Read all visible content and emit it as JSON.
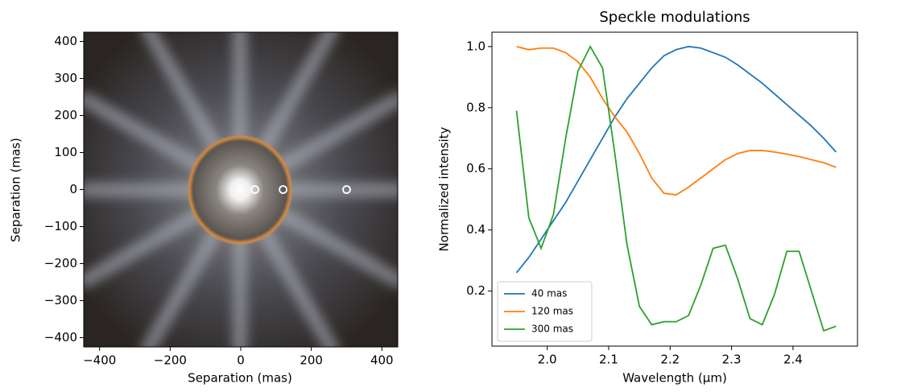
{
  "chart_data": [
    {
      "type": "scatter",
      "xlabel": "Separation (mas)",
      "ylabel": "Separation (mas)",
      "x": [
        40,
        120,
        300
      ],
      "values": [
        0,
        0,
        0
      ],
      "color": "#ffffff",
      "xlim": [
        -445,
        445
      ],
      "ylim": [
        -425,
        425
      ],
      "xticks": [
        {
          "value": -400,
          "label": "−400"
        },
        {
          "value": -200,
          "label": "−200"
        },
        0,
        200,
        400
      ],
      "yticks": [
        {
          "value": -400,
          "label": "−400"
        },
        {
          "value": -300,
          "label": "−300"
        },
        {
          "value": -200,
          "label": "−200"
        },
        {
          "value": -100,
          "label": "−100"
        },
        0,
        100,
        200,
        300,
        400
      ]
    },
    {
      "type": "line",
      "title": "Speckle modulations",
      "xlabel": "Wavelength (µm)",
      "ylabel": "Normalized intensity",
      "x": [
        1.95,
        1.97,
        1.99,
        2.01,
        2.03,
        2.05,
        2.07,
        2.09,
        2.11,
        2.13,
        2.15,
        2.17,
        2.19,
        2.21,
        2.23,
        2.25,
        2.27,
        2.29,
        2.31,
        2.33,
        2.35,
        2.37,
        2.39,
        2.41,
        2.43,
        2.45,
        2.47
      ],
      "series": [
        {
          "name": "40 mas",
          "color": "#1f77b4",
          "values": [
            0.26,
            0.31,
            0.37,
            0.43,
            0.49,
            0.56,
            0.63,
            0.7,
            0.77,
            0.83,
            0.88,
            0.93,
            0.97,
            0.99,
            1.0,
            0.995,
            0.98,
            0.965,
            0.94,
            0.91,
            0.88,
            0.845,
            0.81,
            0.775,
            0.74,
            0.7,
            0.655
          ]
        },
        {
          "name": "120 mas",
          "color": "#ff7f0e",
          "values": [
            1.0,
            0.99,
            0.995,
            0.995,
            0.98,
            0.95,
            0.9,
            0.83,
            0.77,
            0.72,
            0.65,
            0.57,
            0.52,
            0.515,
            0.54,
            0.57,
            0.6,
            0.63,
            0.65,
            0.66,
            0.66,
            0.655,
            0.648,
            0.64,
            0.63,
            0.62,
            0.605
          ]
        },
        {
          "name": "300 mas",
          "color": "#2ca02c",
          "values": [
            0.79,
            0.44,
            0.34,
            0.45,
            0.7,
            0.92,
            1.0,
            0.93,
            0.65,
            0.35,
            0.15,
            0.09,
            0.1,
            0.1,
            0.12,
            0.22,
            0.34,
            0.35,
            0.24,
            0.11,
            0.09,
            0.19,
            0.33,
            0.33,
            0.2,
            0.07,
            0.085
          ]
        }
      ],
      "legend": "lower left",
      "xlim": [
        1.91,
        2.505
      ],
      "ylim": [
        0.02,
        1.047
      ],
      "xticks": [
        {
          "value": 2,
          "label": "2.0"
        },
        2.1,
        2.2,
        2.3,
        2.4
      ],
      "yticks": [
        0.2,
        0.4,
        0.6,
        0.8,
        {
          "value": 1,
          "label": "1.0"
        }
      ]
    }
  ]
}
